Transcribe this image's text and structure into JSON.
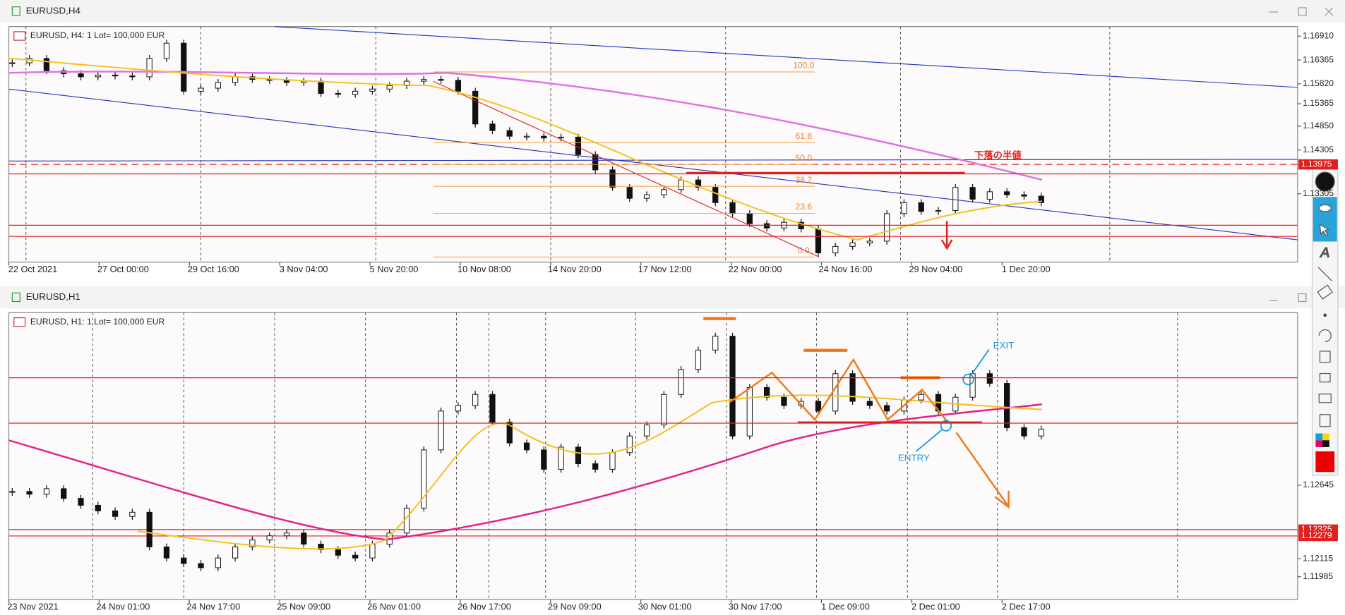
{
  "top": {
    "title": "EURUSD,H4",
    "info": "EURUSD, H4:  1 Lot= 100,000 EUR",
    "ylim": [
      1.1174,
      1.1713
    ],
    "price_labels": [
      {
        "value": 1.1691,
        "label": "1.16910"
      },
      {
        "value": 1.16365,
        "label": "1.16365"
      },
      {
        "value": 1.1582,
        "label": "1.15820"
      },
      {
        "value": 1.15365,
        "label": "1.15365"
      },
      {
        "value": 1.1485,
        "label": "1.14850"
      },
      {
        "value": 1.14305,
        "label": "1.14305"
      },
      {
        "value": 1.13305,
        "label": "1.13305"
      }
    ],
    "marked_prices": [
      {
        "value": 1.13975,
        "label": "1.13975"
      }
    ],
    "time_labels": [
      "22 Oct 2021",
      "27 Oct 00:00",
      "29 Oct 16:00",
      "3 Nov 04:00",
      "5 Nov 20:00",
      "10 Nov 08:00",
      "14 Nov 20:00",
      "17 Nov 12:00",
      "22 Nov 00:00",
      "24 Nov 16:00",
      "29 Nov 04:00",
      "1 Dec 20:00"
    ],
    "fib_levels": [
      {
        "value": 100,
        "label": "100.0"
      },
      61.8,
      {
        "value": 50,
        "label": "50.0"
      },
      38.2,
      23.6,
      {
        "value": 0,
        "label": "0.0"
      }
    ],
    "annotation": "下落の半値",
    "closes": [
      1.163,
      1.164,
      1.1612,
      1.1605,
      1.1598,
      1.1602,
      1.16,
      1.1598,
      1.164,
      1.1675,
      1.1565,
      1.1572,
      1.1585,
      1.1598,
      1.1592,
      1.159,
      1.1585,
      1.1588,
      1.156,
      1.1558,
      1.1565,
      1.157,
      1.1578,
      1.1588,
      1.1592,
      1.159,
      1.1565,
      1.149,
      1.1475,
      1.1462,
      1.1462,
      1.1458,
      1.146,
      1.142,
      1.1385,
      1.1345,
      1.132,
      1.1328,
      1.134,
      1.1362,
      1.1345,
      1.131,
      1.1285,
      1.1262,
      1.1252,
      1.1265,
      1.125,
      1.1195,
      1.121,
      1.1218,
      1.1222,
      1.1285,
      1.131,
      1.129,
      1.1292,
      1.1345,
      1.1318,
      1.1335,
      1.1328,
      1.1325,
      1.131
    ]
  },
  "bottom": {
    "title": "EURUSD,H1",
    "info": "EURUSD, H1:  1 Lot= 100,000 EUR",
    "ylim": [
      1.1182,
      1.1389
    ],
    "price_labels": [
      {
        "value": 1.12645,
        "label": "1.12645"
      },
      {
        "value": 1.12115,
        "label": "1.12115"
      },
      {
        "value": 1.11985,
        "label": "1.11985"
      }
    ],
    "marked_prices": [
      {
        "value": 1.12325,
        "label": "1.12325"
      },
      {
        "value": 1.12279,
        "label": "1.12279"
      }
    ],
    "time_labels": [
      "23 Nov 2021",
      "24 Nov 01:00",
      "24 Nov 17:00",
      "25 Nov 09:00",
      "26 Nov 01:00",
      "26 Nov 17:00",
      "29 Nov 09:00",
      "30 Nov 01:00",
      "30 Nov 17:00",
      "1 Dec 09:00",
      "2 Dec 01:00",
      "2 Dec 17:00"
    ],
    "exit": "EXIT",
    "entry": "ENTRY",
    "closes": [
      1.126,
      1.1258,
      1.1262,
      1.1255,
      1.125,
      1.1246,
      1.1242,
      1.1245,
      1.122,
      1.1212,
      1.1208,
      1.1205,
      1.1212,
      1.122,
      1.1225,
      1.1228,
      1.123,
      1.1222,
      1.1218,
      1.1214,
      1.1212,
      1.1222,
      1.123,
      1.1248,
      1.129,
      1.1318,
      1.1322,
      1.133,
      1.131,
      1.1295,
      1.129,
      1.1276,
      1.1292,
      1.128,
      1.1276,
      1.1288,
      1.13,
      1.1308,
      1.133,
      1.1348,
      1.1362,
      1.1372,
      1.13,
      1.1335,
      1.1328,
      1.1322,
      1.1325,
      1.1318,
      1.1345,
      1.1325,
      1.1322,
      1.1318,
      1.1326,
      1.133,
      1.1318,
      1.1328,
      1.1345,
      1.1338,
      1.1306,
      1.13,
      1.1305
    ]
  }
}
